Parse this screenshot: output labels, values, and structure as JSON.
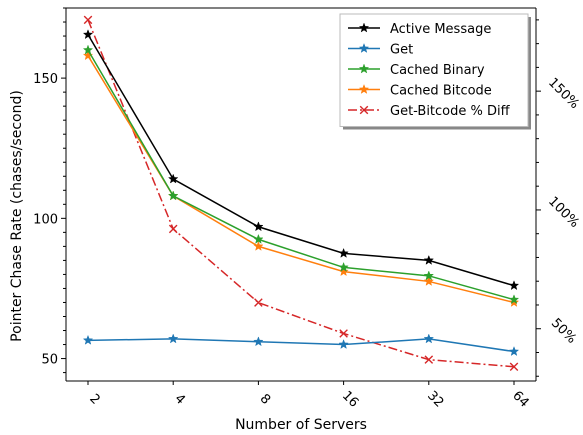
{
  "chart_data": {
    "type": "line",
    "categories": [
      "2",
      "4",
      "8",
      "16",
      "32",
      "64"
    ],
    "xlabel": "Number of Servers",
    "ylabel": "Pointer Chase Rate (chases/second)",
    "ylim": [
      42,
      175
    ],
    "yticks": [
      50,
      100,
      150
    ],
    "y2lim": [
      0.28,
      1.85
    ],
    "y2ticks": [
      0.5,
      1.0,
      1.5
    ],
    "y2tick_labels": [
      "50%",
      "100%",
      "150%"
    ],
    "legend_position": "top-right",
    "series": [
      {
        "name": "Active Message",
        "axis": "left",
        "color": "#000000",
        "marker": "star",
        "dash": "solid",
        "values": [
          165.5,
          114,
          97,
          87.5,
          85,
          76
        ]
      },
      {
        "name": "Get",
        "axis": "left",
        "color": "#1f77b4",
        "marker": "star",
        "dash": "solid",
        "values": [
          56.5,
          57,
          56,
          55,
          57,
          52.5
        ]
      },
      {
        "name": "Cached Binary",
        "axis": "left",
        "color": "#2ca02c",
        "marker": "star",
        "dash": "solid",
        "values": [
          160,
          108,
          92.5,
          82.5,
          79.5,
          71
        ]
      },
      {
        "name": "Cached Bitcode",
        "axis": "left",
        "color": "#ff7f0e",
        "marker": "star",
        "dash": "solid",
        "values": [
          158,
          108,
          90,
          81,
          77.5,
          70
        ]
      },
      {
        "name": "Get-Bitcode % Diff",
        "axis": "right",
        "color": "#d62728",
        "marker": "x",
        "dash": "dashdot",
        "values": [
          1.8,
          0.92,
          0.61,
          0.48,
          0.37,
          0.34
        ]
      }
    ]
  }
}
